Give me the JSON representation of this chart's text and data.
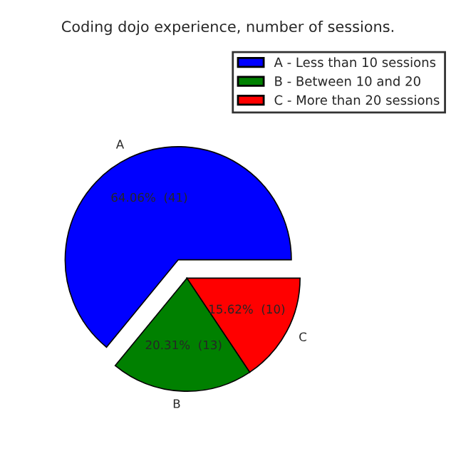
{
  "chart_data": {
    "type": "pie",
    "title": "Coding dojo experience, number of sessions.",
    "categories": [
      "A - Less than 10 sessions",
      "B - Between 10 and 20",
      "C - More than 20 sessions"
    ],
    "values": [
      41,
      13,
      10
    ],
    "colors": [
      "#0000ff",
      "#008000",
      "#ff0000"
    ],
    "value_labels": [
      "64.06%  (41)",
      "20.31%  (13)",
      "15.62%  (10)"
    ],
    "annotations": [
      "A",
      "B",
      "C"
    ],
    "legend": "top right"
  }
}
